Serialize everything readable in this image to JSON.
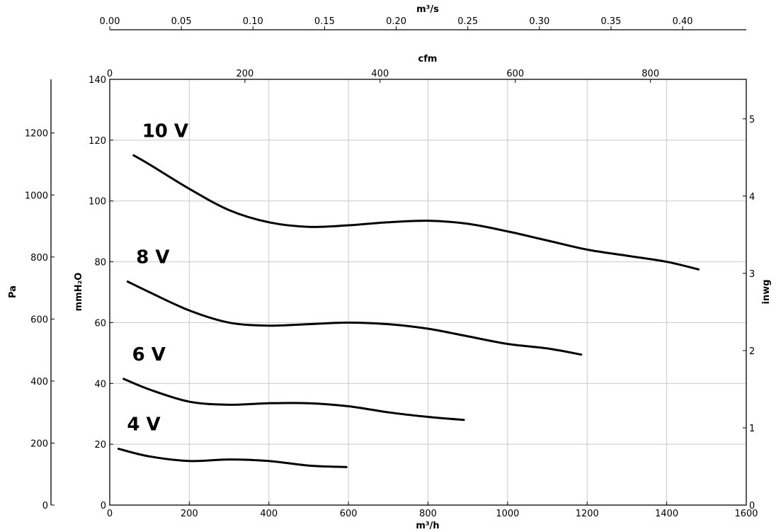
{
  "chart_data": {
    "type": "line",
    "xlabel": "m³/h",
    "ylabel": "mmH₂O",
    "xlim": [
      0,
      1600
    ],
    "ylim": [
      0,
      140
    ],
    "x_ticks": [
      0,
      200,
      400,
      600,
      800,
      1000,
      1200,
      1400,
      1600
    ],
    "y_ticks": [
      0,
      20,
      40,
      60,
      80,
      100,
      120,
      140
    ],
    "grid": true,
    "secondary_axes": {
      "top_ms": {
        "label": "m³/s",
        "ticks": [
          "0.00",
          "0.05",
          "0.10",
          "0.15",
          "0.20",
          "0.25",
          "0.30",
          "0.35",
          "0.40"
        ],
        "per_unit": 3600
      },
      "top_cfm": {
        "label": "cfm",
        "ticks": [
          "0",
          "200",
          "400",
          "600",
          "800"
        ],
        "per_unit": 1.699
      },
      "left_pa": {
        "label": "Pa",
        "ticks": [
          "0",
          "200",
          "400",
          "600",
          "800",
          "1000",
          "1200"
        ],
        "per_unit": 0.10197
      },
      "right_inwg": {
        "label": "inwg",
        "ticks": [
          "0",
          "1",
          "2",
          "3",
          "4",
          "5"
        ],
        "per_unit": 25.4
      }
    },
    "series": [
      {
        "name": "10 V",
        "x": [
          60,
          100,
          200,
          300,
          400,
          500,
          600,
          700,
          800,
          900,
          1000,
          1100,
          1200,
          1300,
          1400,
          1480
        ],
        "y": [
          115,
          112,
          104,
          97,
          93,
          91.5,
          92,
          93,
          93.5,
          92.5,
          90,
          87,
          84,
          82,
          80,
          77.5
        ]
      },
      {
        "name": "8 V",
        "x": [
          45,
          100,
          200,
          300,
          400,
          500,
          600,
          700,
          800,
          900,
          1000,
          1100,
          1185
        ],
        "y": [
          73.5,
          70,
          64,
          60,
          59,
          59.5,
          60,
          59.5,
          58,
          55.5,
          53,
          51.5,
          49.5
        ]
      },
      {
        "name": "6 V",
        "x": [
          35,
          100,
          200,
          300,
          400,
          500,
          600,
          700,
          800,
          890
        ],
        "y": [
          41.5,
          38,
          34,
          33,
          33.5,
          33.5,
          32.5,
          30.5,
          29,
          28
        ]
      },
      {
        "name": "4 V",
        "x": [
          22,
          100,
          200,
          300,
          400,
          500,
          595
        ],
        "y": [
          18.5,
          16,
          14.5,
          15,
          14.5,
          13,
          12.5
        ]
      }
    ]
  }
}
